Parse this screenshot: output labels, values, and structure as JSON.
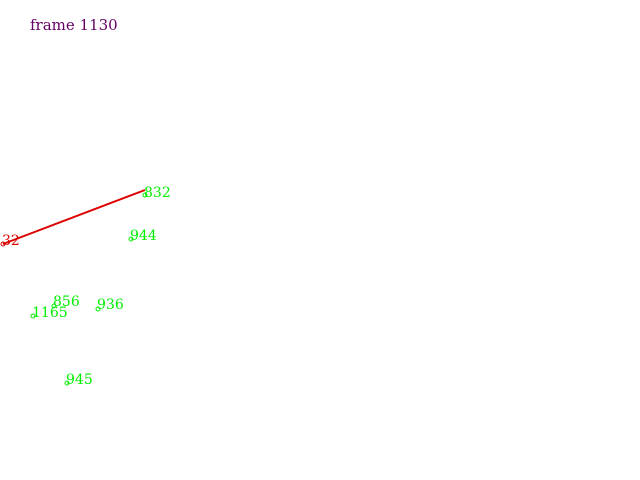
{
  "frame": {
    "label": "frame 1130"
  },
  "colors": {
    "frame_label": "#660066",
    "tracked_point": "#00ee00",
    "active_track": "#dd0000"
  },
  "active_track": {
    "start_label": "32",
    "end_label": "832"
  },
  "points": [
    {
      "id": "944"
    },
    {
      "id": "856"
    },
    {
      "id": "1165"
    },
    {
      "id": "936"
    },
    {
      "id": "945"
    }
  ]
}
